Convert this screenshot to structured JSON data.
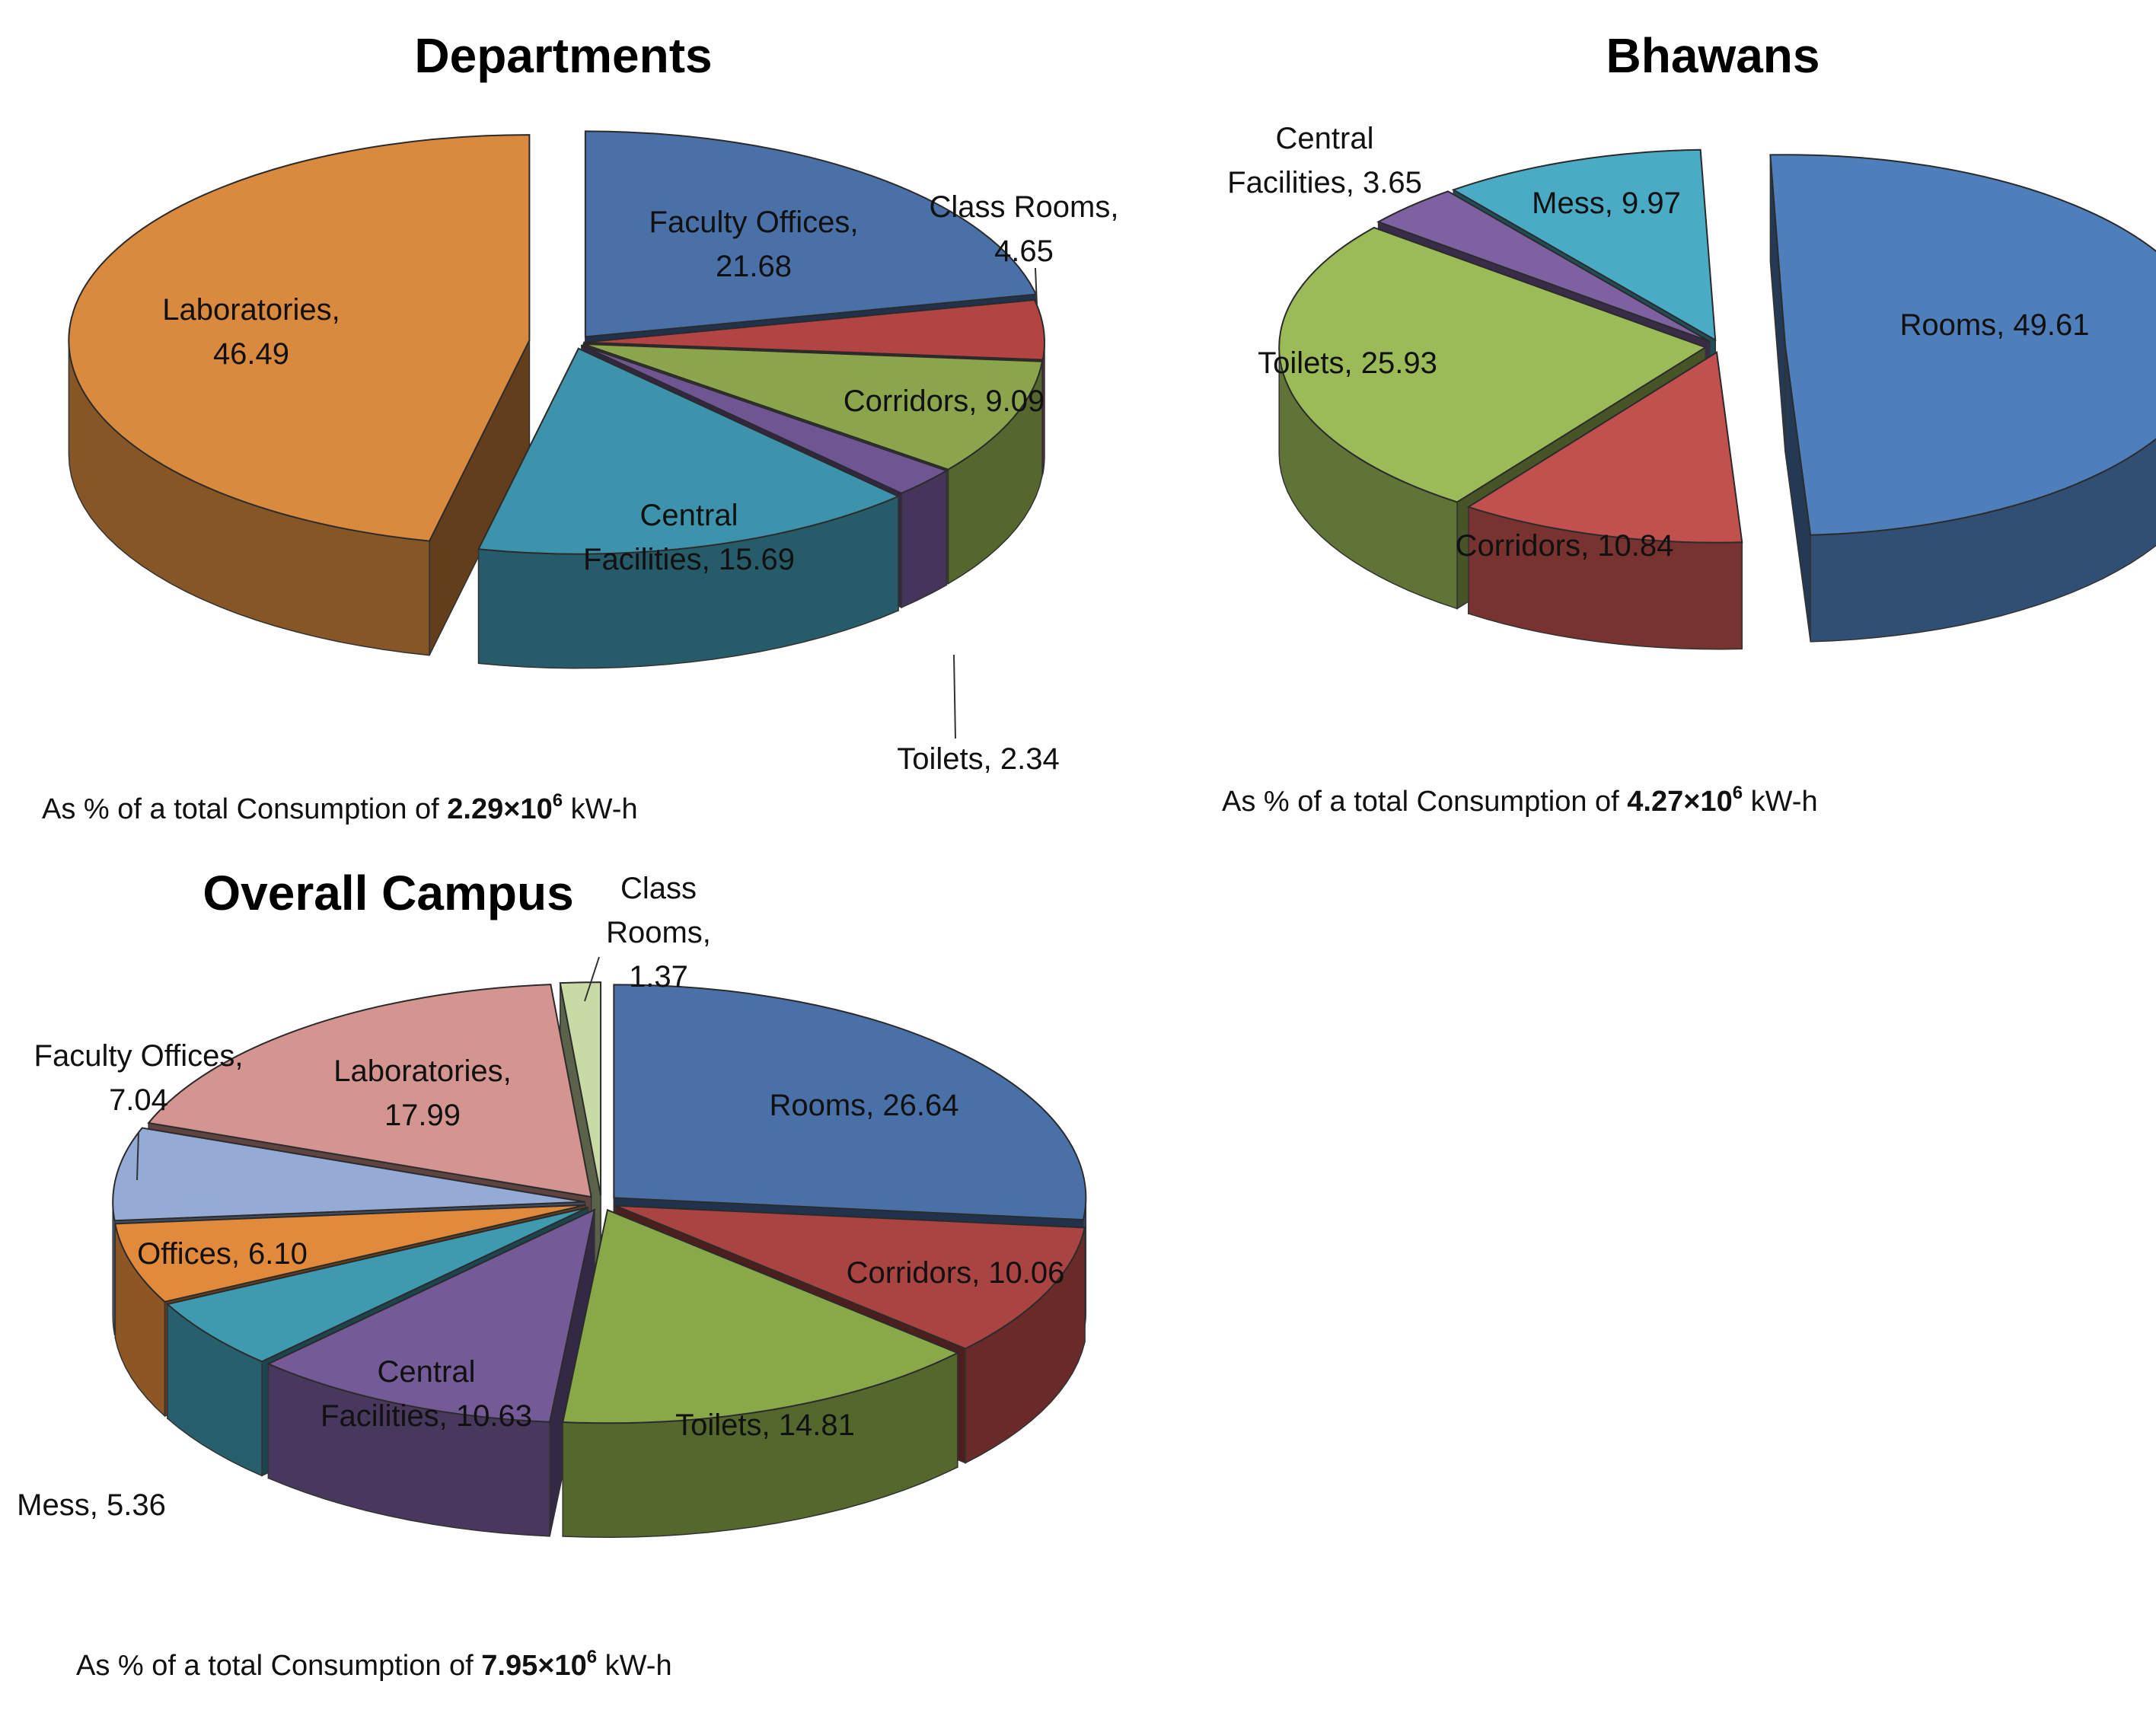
{
  "chart_data": [
    {
      "type": "pie",
      "title": "Departments",
      "caption": {
        "prefix": "As % of a total Consumption of ",
        "value": "2.29×10",
        "exponent": "6",
        "unit": " kW-h"
      },
      "slices": [
        {
          "label": "Faculty Offices",
          "value": 21.68,
          "color": "#4a70a8",
          "lines": [
            "Faculty Offices,",
            "21.68"
          ]
        },
        {
          "label": "Class Rooms",
          "value": 4.65,
          "color": "#b24443",
          "lines": [
            "Class Rooms,",
            "4.65"
          ]
        },
        {
          "label": "Corridors",
          "value": 9.09,
          "color": "#8ba54c",
          "lines": [
            "Corridors, 9.09"
          ]
        },
        {
          "label": "Toilets",
          "value": 2.34,
          "color": "#6f5592",
          "lines": [
            "Toilets, 2.34"
          ]
        },
        {
          "label": "Central Facilities",
          "value": 15.69,
          "color": "#3d93ab",
          "lines": [
            "Central",
            "Facilities, 15.69"
          ]
        },
        {
          "label": "Laboratories",
          "value": 46.49,
          "color": "#d98a3e",
          "lines": [
            "Laboratories,",
            "46.49"
          ]
        }
      ]
    },
    {
      "type": "pie",
      "title": "Bhawans",
      "caption": {
        "prefix": "As % of a total Consumption of ",
        "value": "4.27×10",
        "exponent": "6",
        "unit": " kW-h"
      },
      "slices": [
        {
          "label": "Rooms",
          "value": 49.61,
          "color": "#4f7fbb",
          "lines": [
            "Rooms, 49.61"
          ]
        },
        {
          "label": "Corridors",
          "value": 10.84,
          "color": "#c1504e",
          "lines": [
            "Corridors, 10.84"
          ]
        },
        {
          "label": "Toilets",
          "value": 25.93,
          "color": "#9bbb59",
          "lines": [
            "Toilets, 25.93"
          ]
        },
        {
          "label": "Central Facilities",
          "value": 3.65,
          "color": "#7e61a0",
          "lines": [
            "Central",
            "Facilities, 3.65"
          ]
        },
        {
          "label": "Mess",
          "value": 9.97,
          "color": "#4aabc5",
          "lines": [
            "Mess, 9.97"
          ]
        }
      ]
    },
    {
      "type": "pie",
      "title": "Overall Campus",
      "caption": {
        "prefix": "As % of a total Consumption of ",
        "value": "7.95×10",
        "exponent": "6",
        "unit": " kW-h"
      },
      "slices": [
        {
          "label": "Rooms",
          "value": 26.64,
          "color": "#4a70a8",
          "lines": [
            "Rooms, 26.64"
          ]
        },
        {
          "label": "Corridors",
          "value": 10.06,
          "color": "#a94442",
          "lines": [
            "Corridors, 10.06"
          ]
        },
        {
          "label": "Toilets",
          "value": 14.81,
          "color": "#88a84a",
          "lines": [
            "Toilets, 14.81"
          ]
        },
        {
          "label": "Central Facilities",
          "value": 10.63,
          "color": "#745a96",
          "lines": [
            "Central",
            "Facilities, 10.63"
          ]
        },
        {
          "label": "Mess",
          "value": 5.36,
          "color": "#3f9ab0",
          "lines": [
            "Mess, 5.36"
          ]
        },
        {
          "label": "Offices",
          "value": 6.1,
          "color": "#e28a3c",
          "lines": [
            "Offices, 6.10"
          ]
        },
        {
          "label": "Faculty Offices",
          "value": 7.04,
          "color": "#95abd6",
          "lines": [
            "Faculty Offices,",
            "7.04"
          ]
        },
        {
          "label": "Laboratories",
          "value": 17.99,
          "color": "#d49590",
          "lines": [
            "Laboratories,",
            "17.99"
          ]
        },
        {
          "label": "Class Rooms",
          "value": 1.37,
          "color": "#c8dba4",
          "lines": [
            "Class",
            "Rooms,",
            "1.37"
          ]
        }
      ]
    }
  ]
}
